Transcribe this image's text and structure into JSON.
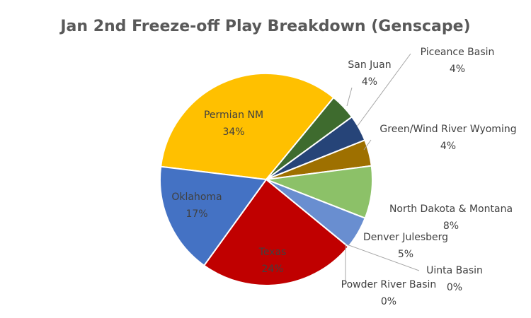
{
  "chart_data": {
    "type": "pie",
    "title": "Jan 2nd Freeze-off Play Breakdown (Genscape)",
    "categories": [
      "Permian NM",
      "San Juan",
      "Piceance Basin",
      "Green/Wind River Wyoming",
      "North Dakota & Montana",
      "Denver Julesberg",
      "Uinta Basin",
      "Powder River Basin",
      "Texas",
      "Oklahoma"
    ],
    "values": [
      34,
      4,
      4,
      4,
      8,
      5,
      0,
      0,
      24,
      17
    ],
    "value_labels": [
      "34%",
      "4%",
      "4%",
      "4%",
      "8%",
      "5%",
      "0%",
      "0%",
      "24%",
      "17%"
    ],
    "colors": [
      "#FFC000",
      "#3E6B2E",
      "#264478",
      "#9E7000",
      "#8CC168",
      "#698ED0",
      "#A5A5A5",
      "#7F7F7F",
      "#C00000",
      "#4472C4"
    ]
  }
}
